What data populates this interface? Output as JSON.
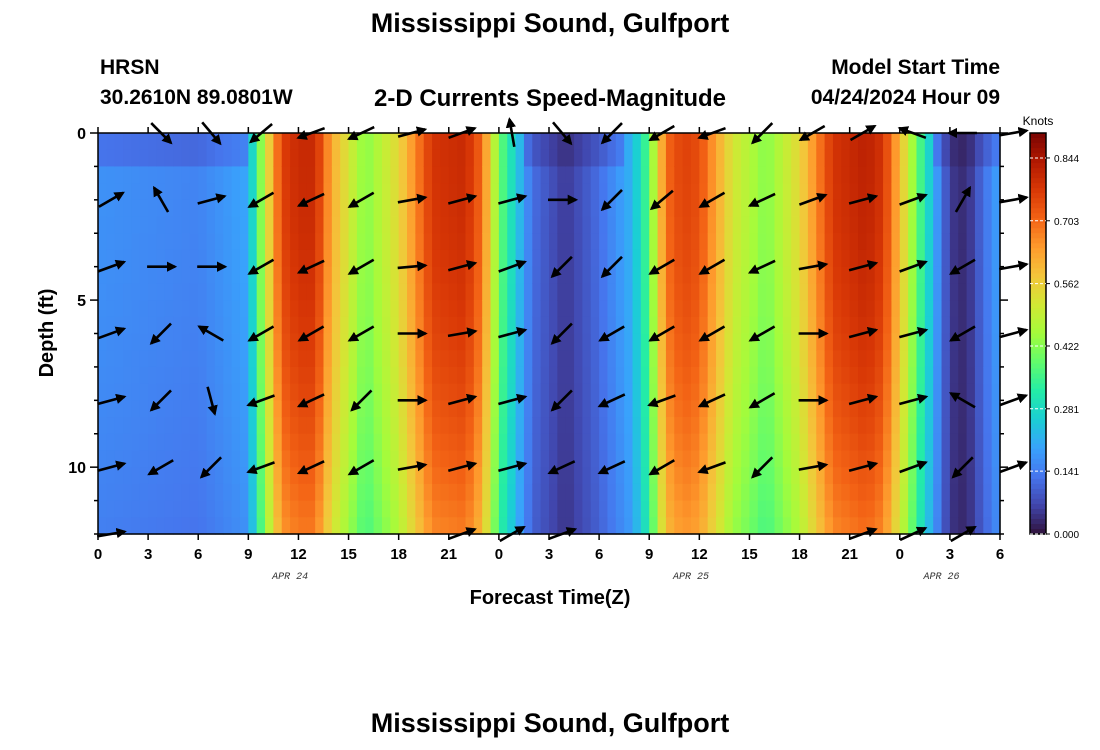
{
  "header": {
    "title": "Mississippi Sound, Gulfport",
    "station_code": "HRSN",
    "coordinates": "30.2610N  89.0801W",
    "subtitle": "2-D Currents Speed-Magnitude",
    "model_start_label": "Model Start Time",
    "model_start_value": "04/24/2024 Hour 09"
  },
  "footer": {
    "title_repeat": "Mississippi Sound, Gulfport"
  },
  "chart_data": {
    "type": "heatmap",
    "title": "Mississippi Sound, Gulfport",
    "subtitle": "2-D Currents Speed-Magnitude",
    "xlabel": "Forecast Time(Z)",
    "ylabel": "Depth (ft)",
    "x_ticks": [
      "0",
      "3",
      "6",
      "9",
      "12",
      "15",
      "18",
      "21",
      "0",
      "3",
      "6",
      "9",
      "12",
      "15",
      "18",
      "21",
      "0",
      "3",
      "6"
    ],
    "date_labels": [
      {
        "label": "APR 24",
        "at_hours": 11.5
      },
      {
        "label": "APR 25",
        "at_hours": 35.5
      },
      {
        "label": "APR 26",
        "at_hours": 50.5
      }
    ],
    "x_range_hours": [
      0,
      54
    ],
    "y_ticks": [
      0,
      5,
      10
    ],
    "y_range_ft": [
      0,
      12
    ],
    "y_inverted": true,
    "colorbar": {
      "label": "Knots",
      "ticks": [
        "0.844",
        "0.703",
        "0.562",
        "0.422",
        "0.281",
        "0.141",
        "0.000"
      ],
      "range": [
        0,
        0.9
      ],
      "colors": [
        "#30123b",
        "#4145ab",
        "#4675ed",
        "#39a2fc",
        "#1bcfd4",
        "#24eca6",
        "#61fc6c",
        "#a4fc3b",
        "#d1e834",
        "#f3c63a",
        "#fe9b2d",
        "#f36315",
        "#d93806",
        "#b11901",
        "#7a0402"
      ]
    },
    "speed_profile_hours": [
      0,
      3,
      6,
      9,
      10,
      11,
      12,
      13,
      14,
      16,
      18,
      20,
      22,
      23,
      24,
      26,
      28,
      30,
      32,
      33,
      34,
      35,
      36,
      38,
      40,
      42,
      44,
      46,
      47,
      48,
      49,
      50,
      51,
      52,
      53,
      54
    ],
    "speed_profile_knots": [
      0.17,
      0.16,
      0.15,
      0.2,
      0.5,
      0.76,
      0.8,
      0.8,
      0.62,
      0.42,
      0.55,
      0.78,
      0.8,
      0.7,
      0.4,
      0.12,
      0.05,
      0.12,
      0.22,
      0.38,
      0.7,
      0.76,
      0.74,
      0.52,
      0.42,
      0.55,
      0.78,
      0.82,
      0.78,
      0.6,
      0.4,
      0.22,
      0.05,
      0.03,
      0.12,
      0.2
    ],
    "vector_columns_hours": [
      0,
      3,
      6,
      9,
      12,
      15,
      18,
      21,
      24,
      27,
      30,
      33,
      36,
      39,
      42,
      45,
      48,
      51,
      54
    ],
    "vector_rows_ft": [
      0,
      2,
      4,
      6,
      8,
      10,
      12
    ],
    "vector_directions_deg": [
      [
        null,
        135,
        140,
        230,
        250,
        245,
        75,
        70,
        350,
        140,
        225,
        240,
        250,
        225,
        240,
        60,
        290,
        270,
        80
      ],
      [
        60,
        330,
        75,
        240,
        245,
        240,
        80,
        75,
        75,
        90,
        225,
        230,
        240,
        245,
        70,
        75,
        70,
        30,
        80
      ],
      [
        70,
        90,
        90,
        240,
        245,
        240,
        85,
        75,
        70,
        225,
        225,
        240,
        240,
        245,
        80,
        75,
        70,
        240,
        80
      ],
      [
        70,
        225,
        300,
        240,
        240,
        240,
        90,
        80,
        75,
        225,
        240,
        240,
        240,
        240,
        90,
        75,
        75,
        240,
        75
      ],
      [
        75,
        225,
        165,
        250,
        245,
        225,
        90,
        75,
        75,
        225,
        245,
        250,
        245,
        240,
        90,
        75,
        75,
        300,
        70
      ],
      [
        75,
        240,
        225,
        250,
        245,
        240,
        80,
        75,
        75,
        245,
        245,
        240,
        250,
        225,
        80,
        75,
        70,
        225,
        70
      ],
      [
        80,
        null,
        null,
        null,
        null,
        null,
        null,
        70,
        60,
        70,
        null,
        null,
        null,
        null,
        null,
        70,
        65,
        60,
        null
      ]
    ]
  }
}
